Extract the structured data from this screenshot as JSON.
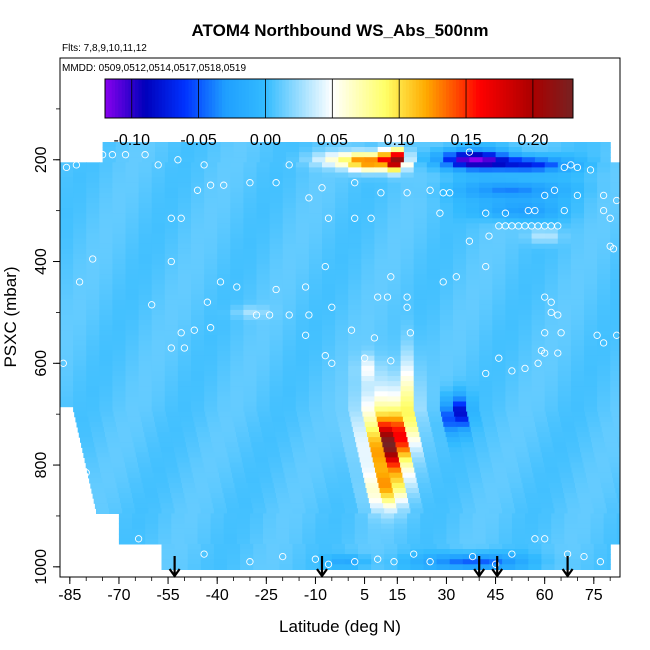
{
  "chart_data": {
    "type": "heatmap",
    "title": "ATOM4 Northbound WS_Abs_500nm",
    "subtitle_flights": "Flts: 7,8,9,10,11,12",
    "subtitle_dates": "MMDD: 0509,0512,0514,0517,0518,0519",
    "xlabel": "Latitude (deg N)",
    "ylabel": "PSXC (mbar)",
    "xlim": [
      -88,
      83
    ],
    "ylim": [
      1020,
      0
    ],
    "x_ticks": [
      -85,
      -70,
      -55,
      -40,
      -25,
      -10,
      5,
      15,
      30,
      45,
      60,
      75
    ],
    "y_ticks": [
      200,
      400,
      600,
      800,
      1000
    ],
    "colorbar": {
      "min": -0.12,
      "max": 0.23,
      "ticks": [
        -0.1,
        -0.05,
        0.0,
        0.05,
        0.1,
        0.15,
        0.2
      ],
      "tick_labels": [
        "-0.10",
        "-0.05",
        "0.00",
        "0.05",
        "0.10",
        "0.15",
        "0.20"
      ],
      "colors": [
        "#8800ee",
        "#0000bb",
        "#0033ff",
        "#1f9fff",
        "#33bbff",
        "#ffffff",
        "#ffff66",
        "#ffaa00",
        "#ff0000",
        "#aa0000",
        "#772222"
      ],
      "color_positions": [
        -0.12,
        -0.09,
        -0.06,
        -0.03,
        0.0,
        0.05,
        0.09,
        0.12,
        0.16,
        0.2,
        0.23
      ]
    },
    "arrows_lat": [
      -53,
      -8,
      40,
      45.5,
      67
    ],
    "point_markers": [
      [
        -78,
        190
      ],
      [
        -75,
        190
      ],
      [
        -72,
        190
      ],
      [
        -68,
        190
      ],
      [
        -62,
        190
      ],
      [
        -58,
        210
      ],
      [
        -52,
        200
      ],
      [
        -44,
        210
      ],
      [
        -86,
        215
      ],
      [
        -83,
        210
      ],
      [
        -18,
        210
      ],
      [
        37,
        185
      ],
      [
        66,
        215
      ],
      [
        68,
        210
      ],
      [
        70,
        215
      ],
      [
        74,
        220
      ],
      [
        -46,
        260
      ],
      [
        -42,
        250
      ],
      [
        -38,
        250
      ],
      [
        -30,
        245
      ],
      [
        -22,
        245
      ],
      [
        -12,
        275
      ],
      [
        -8,
        255
      ],
      [
        2,
        245
      ],
      [
        10,
        265
      ],
      [
        18,
        265
      ],
      [
        25,
        260
      ],
      [
        29,
        265
      ],
      [
        31,
        265
      ],
      [
        42,
        305
      ],
      [
        48,
        305
      ],
      [
        55,
        300
      ],
      [
        57,
        300
      ],
      [
        60,
        270
      ],
      [
        63,
        260
      ],
      [
        66,
        300
      ],
      [
        70,
        270
      ],
      [
        78,
        270
      ],
      [
        82,
        280
      ],
      [
        -54,
        315
      ],
      [
        -51,
        315
      ],
      [
        -6,
        315
      ],
      [
        2,
        315
      ],
      [
        7,
        315
      ],
      [
        28,
        305
      ],
      [
        37,
        360
      ],
      [
        43,
        350
      ],
      [
        46,
        330
      ],
      [
        48,
        330
      ],
      [
        50,
        330
      ],
      [
        52,
        330
      ],
      [
        54,
        330
      ],
      [
        56,
        330
      ],
      [
        58,
        330
      ],
      [
        60,
        330
      ],
      [
        62,
        330
      ],
      [
        64,
        330
      ],
      [
        78,
        300
      ],
      [
        80,
        315
      ],
      [
        81,
        375
      ],
      [
        -78,
        395
      ],
      [
        -54,
        400
      ],
      [
        -7,
        410
      ],
      [
        13,
        430
      ],
      [
        33,
        430
      ],
      [
        42,
        410
      ],
      [
        80,
        370
      ],
      [
        -82,
        440
      ],
      [
        -39,
        440
      ],
      [
        -34,
        450
      ],
      [
        -22,
        455
      ],
      [
        -13,
        450
      ],
      [
        9,
        470
      ],
      [
        12,
        470
      ],
      [
        18,
        470
      ],
      [
        60,
        470
      ],
      [
        62,
        480
      ],
      [
        -60,
        485
      ],
      [
        -43,
        480
      ],
      [
        -28,
        505
      ],
      [
        -24,
        505
      ],
      [
        -18,
        505
      ],
      [
        -12,
        505
      ],
      [
        -5,
        490
      ],
      [
        18,
        490
      ],
      [
        62,
        500
      ],
      [
        64,
        505
      ],
      [
        -51,
        540
      ],
      [
        -47,
        535
      ],
      [
        -42,
        530
      ],
      [
        -13,
        545
      ],
      [
        1,
        535
      ],
      [
        8,
        550
      ],
      [
        19,
        540
      ],
      [
        60,
        540
      ],
      [
        65,
        540
      ],
      [
        76,
        545
      ],
      [
        82,
        545
      ],
      [
        -54,
        570
      ],
      [
        -50,
        570
      ],
      [
        -7,
        585
      ],
      [
        -5,
        600
      ],
      [
        5,
        590
      ],
      [
        13,
        595
      ],
      [
        42,
        620
      ],
      [
        46,
        590
      ],
      [
        50,
        615
      ],
      [
        54,
        610
      ],
      [
        58,
        600
      ],
      [
        59,
        575
      ],
      [
        60,
        580
      ],
      [
        64,
        580
      ],
      [
        78,
        560
      ],
      [
        -87,
        600
      ],
      [
        29,
        440
      ],
      [
        -80,
        815
      ],
      [
        -64,
        945
      ],
      [
        -44,
        975
      ],
      [
        -30,
        990
      ],
      [
        -20,
        980
      ],
      [
        -10,
        985
      ],
      [
        2,
        990
      ],
      [
        9,
        985
      ],
      [
        14,
        990
      ],
      [
        20,
        975
      ],
      [
        25,
        990
      ],
      [
        38,
        980
      ],
      [
        50,
        975
      ],
      [
        57,
        945
      ],
      [
        60,
        945
      ],
      [
        67,
        975
      ],
      [
        72,
        980
      ],
      [
        77,
        990
      ],
      [
        45,
        995
      ],
      [
        -6,
        995
      ]
    ]
  }
}
